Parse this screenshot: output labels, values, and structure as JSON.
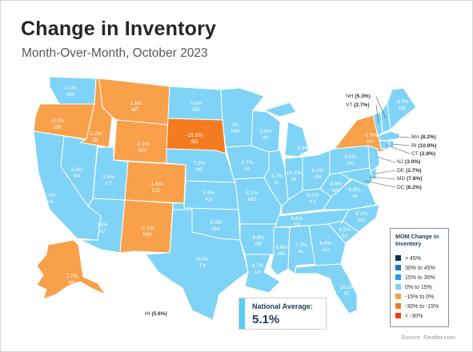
{
  "title": "Change in Inventory",
  "subtitle": "Month-Over-Month, October 2023",
  "source": "Source: Realtor.com",
  "national": {
    "label": "National Average:",
    "value": "5.1%"
  },
  "legend": {
    "title": "MOM Change in Inventory",
    "items": [
      {
        "label": "> 45%",
        "color": "#0e2f56"
      },
      {
        "label": "30% to 45%",
        "color": "#1f76c2"
      },
      {
        "label": "15% to 30%",
        "color": "#1ea0ea"
      },
      {
        "label": "0% to 15%",
        "color": "#7fd3f6"
      },
      {
        "label": "-15% to 0%",
        "color": "#f9a04a"
      },
      {
        "label": "-30% to -15%",
        "color": "#f47b20"
      },
      {
        "label": "< -30%",
        "color": "#ef4112"
      }
    ]
  },
  "colors": {
    "blue_light": "#7fd3f6",
    "orange_light": "#f9a04a",
    "orange": "#f47b20",
    "border": "#ffffff"
  },
  "states": {
    "WA": "0.1%",
    "OR": "-0.3%",
    "CA": "5.1%",
    "ID": "-1.2%",
    "NV": "2.4%",
    "MT": "-1.8%",
    "WY": "-2.1%",
    "UT": "2.6%",
    "AZ": "14%",
    "CO": "-1.6%",
    "NM": "-2.1%",
    "ND": "0.6%",
    "SD": "-15.5%",
    "NE": "7.5%",
    "KS": "5.8%",
    "OK": "5.5%",
    "TX": "4.8%",
    "MN": "2%",
    "IA": "3.7%",
    "MO": "6.2%",
    "AR": "6.8%",
    "LA": "3.7%",
    "WI": "2.8%",
    "IL": "3.7%",
    "MI": "3.9%",
    "IN": "10.2%",
    "OH": "8.3%",
    "KY": "8.2%",
    "TN": "4.6%",
    "MS": "6.6%",
    "AL": "7.2%",
    "GA": "6.6%",
    "FL": "10.1%",
    "SC": "6.5%",
    "NC": "8.1%",
    "VA": "6.8%",
    "WV": "4.9%",
    "PA": "6.0%",
    "NY": "-2.9%",
    "ME": "3.3%",
    "AK": "-7.2%"
  },
  "northeast_list": [
    {
      "abbr": "NH",
      "value": "(5.3%)"
    },
    {
      "abbr": "VT",
      "value": "(2.7%)"
    }
  ],
  "mid_atlantic_list": [
    {
      "abbr": "MA",
      "value": "(8.2%)"
    },
    {
      "abbr": "RI",
      "value": "(10.9%)"
    },
    {
      "abbr": "CT",
      "value": "(2.8%)"
    },
    {
      "abbr": "NJ",
      "value": "(3.0%)"
    },
    {
      "abbr": "DE",
      "value": "(3.7%)"
    },
    {
      "abbr": "MD",
      "value": "(7.8%)"
    },
    {
      "abbr": "DC",
      "value": "(6.2%)"
    }
  ],
  "hawaii": {
    "abbr": "HI",
    "value": "(5.6%)"
  }
}
